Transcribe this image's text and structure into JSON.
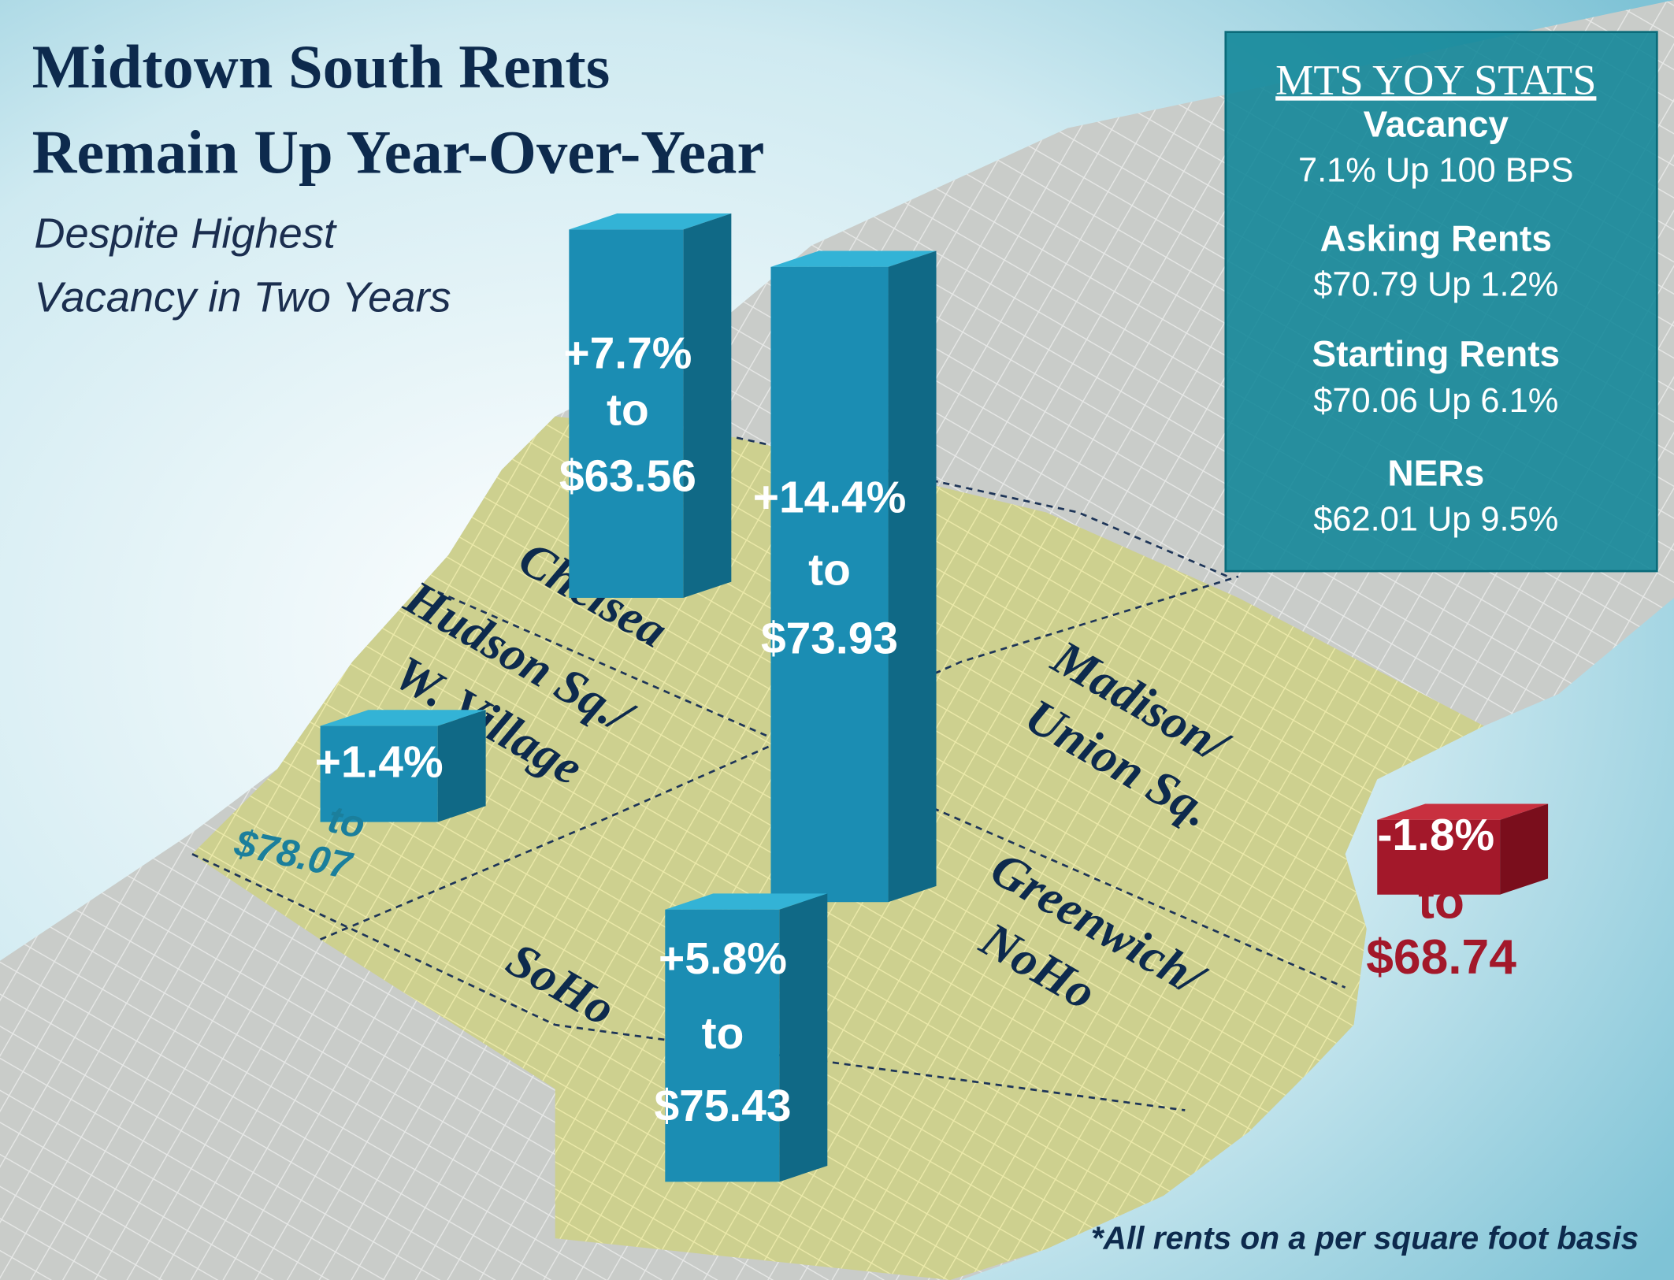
{
  "title": [
    "Midtown South Rents",
    "Remain Up Year-Over-Year"
  ],
  "subtitle": [
    "Despite Highest",
    "Vacancy in Two Years"
  ],
  "stats": {
    "heading": "MTS YOY STATS",
    "items": [
      {
        "label": "Vacancy",
        "value": "7.1% Up 100 BPS"
      },
      {
        "label": "Asking Rents",
        "value": "$70.79 Up 1.2%"
      },
      {
        "label": "Starting Rents",
        "value": "$70.06 Up 6.1%"
      },
      {
        "label": "NERs",
        "value": "$62.01 Up 9.5%"
      }
    ]
  },
  "submarkets": [
    {
      "name": [
        "Chelsea"
      ],
      "change": "+7.7%",
      "to": "to",
      "rent": "$63.56"
    },
    {
      "name": [
        "Madison/",
        "Union Sq."
      ],
      "change": "+14.4%",
      "to": "to",
      "rent": "$73.93"
    },
    {
      "name": [
        "Hudson Sq./",
        "W. Village"
      ],
      "change": "+1.4%",
      "to": "to",
      "rent": "$78.07"
    },
    {
      "name": [
        "SoHo"
      ],
      "change": "+5.8%",
      "to": "to",
      "rent": "$75.43"
    },
    {
      "name": [
        "Greenwich/",
        "NoHo"
      ],
      "change": "-1.8%",
      "to": "to",
      "rent": "$68.74"
    }
  ],
  "footnote": "*All rents on a per square foot basis"
}
